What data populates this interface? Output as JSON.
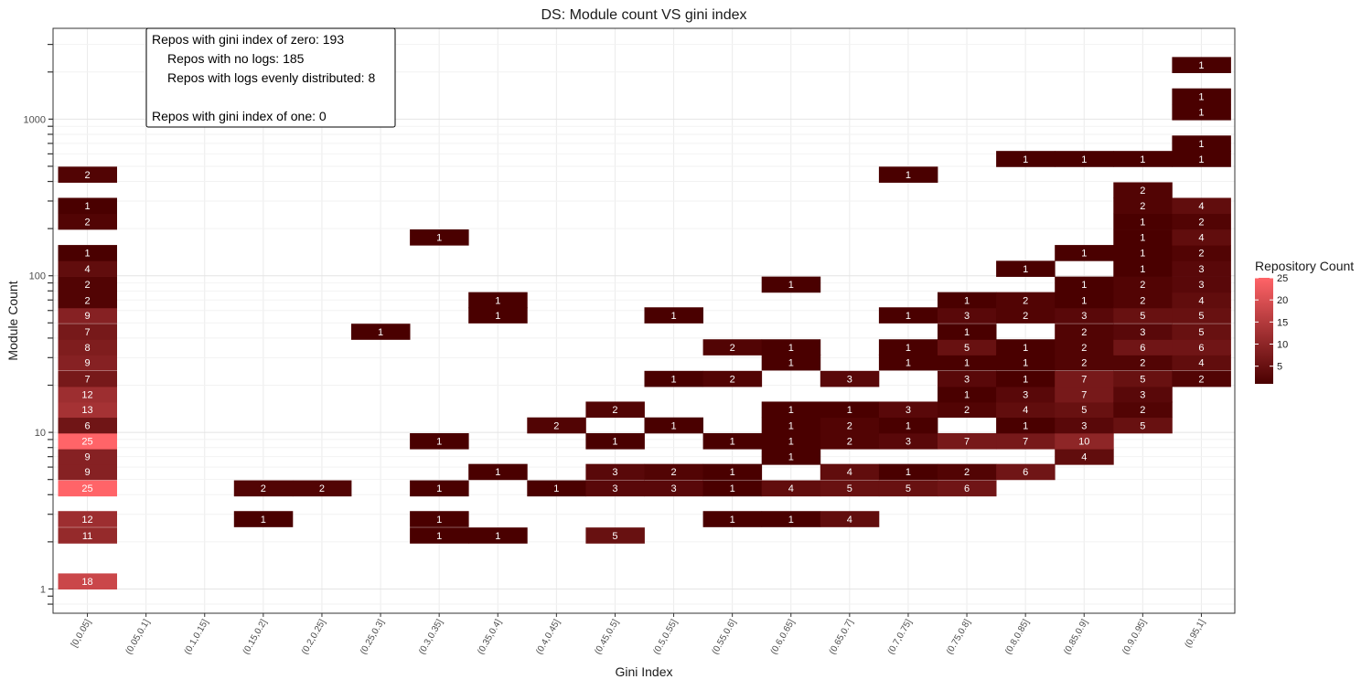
{
  "chart_data": {
    "type": "heatmap",
    "title": "DS: Module count VS gini index",
    "xlabel": "Gini Index",
    "ylabel": "Module Count",
    "y_scale": "log",
    "ylim": [
      0.7,
      3800
    ],
    "y_ticks": [
      {
        "value": 1,
        "label": "1"
      },
      {
        "value": 10,
        "label": "10"
      },
      {
        "value": 100,
        "label": "100"
      },
      {
        "value": 1000,
        "label": "1000"
      }
    ],
    "grid": true,
    "legend_position": "right",
    "legend": {
      "title": "Repository Count",
      "min": 1,
      "max": 25,
      "ticks": [
        5,
        10,
        15,
        20,
        25
      ],
      "low_color": "#4a0000",
      "high_color": "#ff6468"
    },
    "categories": [
      "[0,0.05]",
      "(0.05,0.1]",
      "(0.1,0.15]",
      "(0.15,0.2]",
      "(0.2,0.25]",
      "(0.25,0.3]",
      "(0.3,0.35]",
      "(0.35,0.4]",
      "(0.4,0.45]",
      "(0.45,0.5]",
      "(0.5,0.55]",
      "(0.55,0.6]",
      "(0.6,0.65]",
      "(0.65,0.7]",
      "(0.7,0.75]",
      "(0.75,0.8]",
      "(0.8,0.85]",
      "(0.85,0.9]",
      "(0.9,0.95]",
      "(0.95,1]"
    ],
    "cells": [
      {
        "x": 0,
        "y": 1.12,
        "count": 18
      },
      {
        "x": 0,
        "y": 2.2,
        "count": 11
      },
      {
        "x": 0,
        "y": 2.8,
        "count": 12
      },
      {
        "x": 0,
        "y": 4.4,
        "count": 25
      },
      {
        "x": 0,
        "y": 5.6,
        "count": 9
      },
      {
        "x": 0,
        "y": 7.0,
        "count": 9
      },
      {
        "x": 0,
        "y": 8.8,
        "count": 25
      },
      {
        "x": 0,
        "y": 11.1,
        "count": 6
      },
      {
        "x": 0,
        "y": 14,
        "count": 13
      },
      {
        "x": 0,
        "y": 17.5,
        "count": 12
      },
      {
        "x": 0,
        "y": 22,
        "count": 7
      },
      {
        "x": 0,
        "y": 28,
        "count": 9
      },
      {
        "x": 0,
        "y": 35,
        "count": 8
      },
      {
        "x": 0,
        "y": 44,
        "count": 7
      },
      {
        "x": 0,
        "y": 56,
        "count": 9
      },
      {
        "x": 0,
        "y": 70,
        "count": 2
      },
      {
        "x": 0,
        "y": 88,
        "count": 2
      },
      {
        "x": 0,
        "y": 111,
        "count": 4
      },
      {
        "x": 0,
        "y": 140,
        "count": 1
      },
      {
        "x": 0,
        "y": 222,
        "count": 2
      },
      {
        "x": 0,
        "y": 280,
        "count": 1
      },
      {
        "x": 0,
        "y": 443,
        "count": 2
      },
      {
        "x": 3,
        "y": 2.8,
        "count": 1
      },
      {
        "x": 3,
        "y": 4.4,
        "count": 2
      },
      {
        "x": 4,
        "y": 4.4,
        "count": 2
      },
      {
        "x": 5,
        "y": 44,
        "count": 1
      },
      {
        "x": 6,
        "y": 2.2,
        "count": 1
      },
      {
        "x": 6,
        "y": 2.8,
        "count": 1
      },
      {
        "x": 6,
        "y": 4.4,
        "count": 1
      },
      {
        "x": 6,
        "y": 8.8,
        "count": 1
      },
      {
        "x": 6,
        "y": 176,
        "count": 1
      },
      {
        "x": 7,
        "y": 2.2,
        "count": 1
      },
      {
        "x": 7,
        "y": 5.6,
        "count": 1
      },
      {
        "x": 7,
        "y": 56,
        "count": 1
      },
      {
        "x": 7,
        "y": 70,
        "count": 1
      },
      {
        "x": 8,
        "y": 4.4,
        "count": 1
      },
      {
        "x": 8,
        "y": 11.1,
        "count": 2
      },
      {
        "x": 9,
        "y": 2.2,
        "count": 5
      },
      {
        "x": 9,
        "y": 4.4,
        "count": 3
      },
      {
        "x": 9,
        "y": 5.6,
        "count": 3
      },
      {
        "x": 9,
        "y": 8.8,
        "count": 1
      },
      {
        "x": 9,
        "y": 14,
        "count": 2
      },
      {
        "x": 10,
        "y": 4.4,
        "count": 3
      },
      {
        "x": 10,
        "y": 5.6,
        "count": 2
      },
      {
        "x": 10,
        "y": 11.1,
        "count": 1
      },
      {
        "x": 10,
        "y": 22,
        "count": 1
      },
      {
        "x": 10,
        "y": 56,
        "count": 1
      },
      {
        "x": 11,
        "y": 2.8,
        "count": 1
      },
      {
        "x": 11,
        "y": 4.4,
        "count": 1
      },
      {
        "x": 11,
        "y": 5.6,
        "count": 1
      },
      {
        "x": 11,
        "y": 8.8,
        "count": 1
      },
      {
        "x": 11,
        "y": 22,
        "count": 2
      },
      {
        "x": 11,
        "y": 35,
        "count": 2
      },
      {
        "x": 12,
        "y": 2.8,
        "count": 1
      },
      {
        "x": 12,
        "y": 4.4,
        "count": 4
      },
      {
        "x": 12,
        "y": 7.0,
        "count": 1
      },
      {
        "x": 12,
        "y": 8.8,
        "count": 1
      },
      {
        "x": 12,
        "y": 11.1,
        "count": 1
      },
      {
        "x": 12,
        "y": 14,
        "count": 1
      },
      {
        "x": 12,
        "y": 28,
        "count": 1
      },
      {
        "x": 12,
        "y": 35,
        "count": 1
      },
      {
        "x": 12,
        "y": 88,
        "count": 1
      },
      {
        "x": 13,
        "y": 2.8,
        "count": 4
      },
      {
        "x": 13,
        "y": 4.4,
        "count": 5
      },
      {
        "x": 13,
        "y": 5.6,
        "count": 4
      },
      {
        "x": 13,
        "y": 8.8,
        "count": 2
      },
      {
        "x": 13,
        "y": 11.1,
        "count": 2
      },
      {
        "x": 13,
        "y": 14,
        "count": 1
      },
      {
        "x": 13,
        "y": 22,
        "count": 3
      },
      {
        "x": 14,
        "y": 4.4,
        "count": 5
      },
      {
        "x": 14,
        "y": 5.6,
        "count": 1
      },
      {
        "x": 14,
        "y": 8.8,
        "count": 3
      },
      {
        "x": 14,
        "y": 11.1,
        "count": 1
      },
      {
        "x": 14,
        "y": 14,
        "count": 3
      },
      {
        "x": 14,
        "y": 28,
        "count": 1
      },
      {
        "x": 14,
        "y": 35,
        "count": 1
      },
      {
        "x": 14,
        "y": 56,
        "count": 1
      },
      {
        "x": 14,
        "y": 443,
        "count": 1
      },
      {
        "x": 15,
        "y": 4.4,
        "count": 6
      },
      {
        "x": 15,
        "y": 5.6,
        "count": 2
      },
      {
        "x": 15,
        "y": 8.8,
        "count": 7
      },
      {
        "x": 15,
        "y": 14,
        "count": 2
      },
      {
        "x": 15,
        "y": 17.5,
        "count": 1
      },
      {
        "x": 15,
        "y": 22,
        "count": 3
      },
      {
        "x": 15,
        "y": 28,
        "count": 1
      },
      {
        "x": 15,
        "y": 35,
        "count": 5
      },
      {
        "x": 15,
        "y": 44,
        "count": 1
      },
      {
        "x": 15,
        "y": 56,
        "count": 3
      },
      {
        "x": 15,
        "y": 70,
        "count": 1
      },
      {
        "x": 16,
        "y": 5.6,
        "count": 6
      },
      {
        "x": 16,
        "y": 8.8,
        "count": 7
      },
      {
        "x": 16,
        "y": 11.1,
        "count": 1
      },
      {
        "x": 16,
        "y": 14,
        "count": 4
      },
      {
        "x": 16,
        "y": 17.5,
        "count": 3
      },
      {
        "x": 16,
        "y": 22,
        "count": 1
      },
      {
        "x": 16,
        "y": 28,
        "count": 1
      },
      {
        "x": 16,
        "y": 35,
        "count": 1
      },
      {
        "x": 16,
        "y": 56,
        "count": 2
      },
      {
        "x": 16,
        "y": 70,
        "count": 2
      },
      {
        "x": 16,
        "y": 111,
        "count": 1
      },
      {
        "x": 16,
        "y": 558,
        "count": 1
      },
      {
        "x": 17,
        "y": 7.0,
        "count": 4
      },
      {
        "x": 17,
        "y": 8.8,
        "count": 10
      },
      {
        "x": 17,
        "y": 11.1,
        "count": 3
      },
      {
        "x": 17,
        "y": 14,
        "count": 5
      },
      {
        "x": 17,
        "y": 17.5,
        "count": 7
      },
      {
        "x": 17,
        "y": 22,
        "count": 7
      },
      {
        "x": 17,
        "y": 28,
        "count": 2
      },
      {
        "x": 17,
        "y": 35,
        "count": 2
      },
      {
        "x": 17,
        "y": 44,
        "count": 2
      },
      {
        "x": 17,
        "y": 56,
        "count": 3
      },
      {
        "x": 17,
        "y": 70,
        "count": 1
      },
      {
        "x": 17,
        "y": 88,
        "count": 1
      },
      {
        "x": 17,
        "y": 140,
        "count": 1
      },
      {
        "x": 17,
        "y": 558,
        "count": 1
      },
      {
        "x": 18,
        "y": 11.1,
        "count": 5
      },
      {
        "x": 18,
        "y": 14,
        "count": 2
      },
      {
        "x": 18,
        "y": 17.5,
        "count": 3
      },
      {
        "x": 18,
        "y": 22,
        "count": 5
      },
      {
        "x": 18,
        "y": 28,
        "count": 2
      },
      {
        "x": 18,
        "y": 35,
        "count": 6
      },
      {
        "x": 18,
        "y": 44,
        "count": 3
      },
      {
        "x": 18,
        "y": 56,
        "count": 5
      },
      {
        "x": 18,
        "y": 70,
        "count": 2
      },
      {
        "x": 18,
        "y": 88,
        "count": 2
      },
      {
        "x": 18,
        "y": 111,
        "count": 1
      },
      {
        "x": 18,
        "y": 140,
        "count": 1
      },
      {
        "x": 18,
        "y": 176,
        "count": 1
      },
      {
        "x": 18,
        "y": 222,
        "count": 1
      },
      {
        "x": 18,
        "y": 280,
        "count": 2
      },
      {
        "x": 18,
        "y": 352,
        "count": 2
      },
      {
        "x": 18,
        "y": 558,
        "count": 1
      },
      {
        "x": 19,
        "y": 22,
        "count": 2
      },
      {
        "x": 19,
        "y": 28,
        "count": 4
      },
      {
        "x": 19,
        "y": 35,
        "count": 6
      },
      {
        "x": 19,
        "y": 44,
        "count": 5
      },
      {
        "x": 19,
        "y": 56,
        "count": 5
      },
      {
        "x": 19,
        "y": 70,
        "count": 4
      },
      {
        "x": 19,
        "y": 88,
        "count": 3
      },
      {
        "x": 19,
        "y": 111,
        "count": 3
      },
      {
        "x": 19,
        "y": 140,
        "count": 2
      },
      {
        "x": 19,
        "y": 176,
        "count": 4
      },
      {
        "x": 19,
        "y": 222,
        "count": 2
      },
      {
        "x": 19,
        "y": 280,
        "count": 4
      },
      {
        "x": 19,
        "y": 558,
        "count": 1
      },
      {
        "x": 19,
        "y": 700,
        "count": 1
      },
      {
        "x": 19,
        "y": 1110,
        "count": 1
      },
      {
        "x": 19,
        "y": 1400,
        "count": 1
      },
      {
        "x": 19,
        "y": 2220,
        "count": 1
      }
    ],
    "annotation": {
      "lines": [
        "Repos with gini index of zero: 193",
        "Repos with no logs: 185",
        "Repos with logs evenly distributed: 8",
        "",
        "Repos with gini index of one: 0"
      ]
    }
  }
}
